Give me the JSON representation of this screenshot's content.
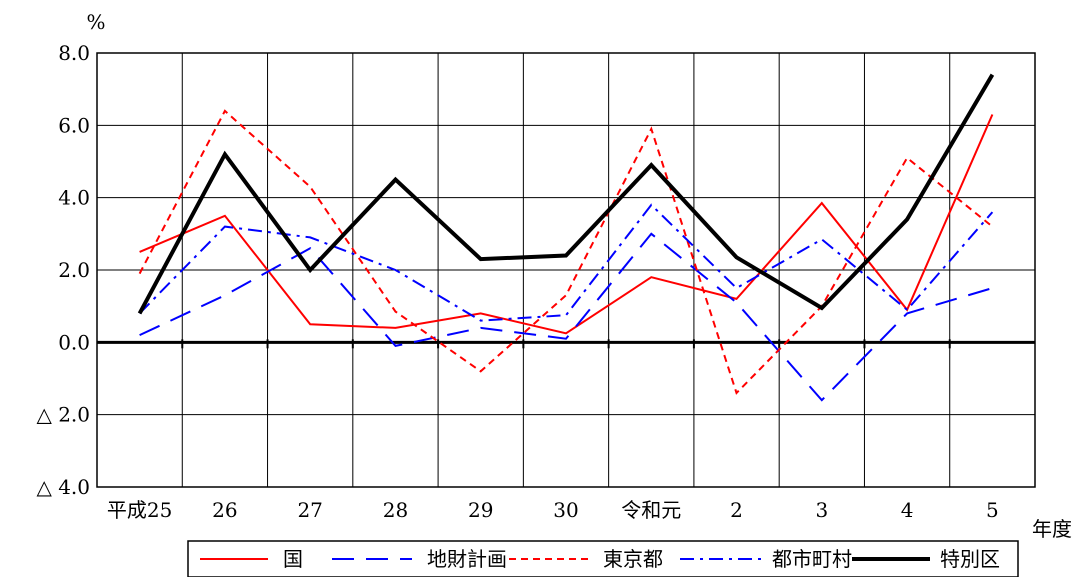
{
  "chart_data": {
    "type": "line",
    "ylabel": "%",
    "xlabel": "年度",
    "categories": [
      "平成25",
      "26",
      "27",
      "28",
      "29",
      "30",
      "令和元",
      "2",
      "3",
      "4",
      "5"
    ],
    "ylim": [
      -4.0,
      8.0
    ],
    "yticks": [
      8.0,
      6.0,
      4.0,
      2.0,
      0.0,
      -2.0,
      -4.0
    ],
    "ytick_labels": [
      "8.0",
      "6.0",
      "4.0",
      "2.0",
      "0.0",
      "△ 2.0",
      "△ 4.0"
    ],
    "grid": true,
    "legend_position": "bottom",
    "series": [
      {
        "name": "国",
        "color": "#ff0000",
        "dash": "solid",
        "width": 2,
        "values": [
          2.5,
          3.5,
          0.5,
          0.4,
          0.8,
          0.25,
          1.8,
          1.2,
          3.85,
          0.9,
          6.3
        ]
      },
      {
        "name": "地財計画",
        "color": "#0000ff",
        "dash": "long-dash",
        "width": 2,
        "values": [
          0.2,
          1.3,
          2.6,
          -0.1,
          0.4,
          0.1,
          3.0,
          1.1,
          -1.6,
          0.8,
          1.5
        ]
      },
      {
        "name": "東京都",
        "color": "#ff0000",
        "dash": "short-dash",
        "width": 2,
        "values": [
          1.9,
          6.4,
          4.3,
          0.85,
          -0.8,
          1.3,
          5.9,
          -1.4,
          1.0,
          5.1,
          3.2
        ]
      },
      {
        "name": "都市町村",
        "color": "#0000ff",
        "dash": "dash-dot",
        "width": 2,
        "values": [
          0.8,
          3.2,
          2.9,
          2.0,
          0.6,
          0.75,
          3.8,
          1.5,
          2.85,
          0.9,
          3.6
        ]
      },
      {
        "name": "特別区",
        "color": "#000000",
        "dash": "solid",
        "width": 4,
        "values": [
          0.8,
          5.2,
          2.0,
          4.5,
          2.3,
          2.4,
          4.9,
          2.35,
          0.95,
          3.4,
          7.4
        ]
      }
    ]
  }
}
